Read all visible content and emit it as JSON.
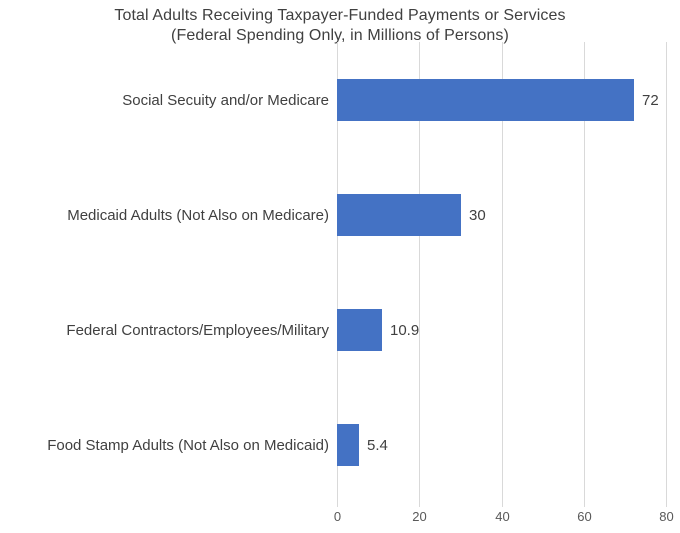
{
  "chart_data": {
    "type": "bar",
    "orientation": "horizontal",
    "title": "Total Adults Receiving Taxpayer-Funded Payments or Services",
    "subtitle": "(Federal Spending Only, in Millions of Persons)",
    "categories": [
      "Social Secuity and/or Medicare",
      "Medicaid Adults (Not Also on Medicare)",
      "Federal Contractors/Employees/Military",
      "Food Stamp Adults (Not Also on Medicaid)"
    ],
    "values": [
      72,
      30,
      10.9,
      5.4
    ],
    "value_labels": [
      "72",
      "30",
      "10.9",
      "5.4"
    ],
    "x_ticks": [
      "0",
      "20",
      "40",
      "60",
      "80"
    ],
    "xlim": [
      0,
      80
    ],
    "xlabel": "",
    "ylabel": "",
    "grid": "vertical gridlines visible, no axis line",
    "legend": "none",
    "data_labels_position": "outside end of bar",
    "colors": {
      "bar": "#4472c4",
      "gridline": "#d9d9d9",
      "title_text": "#404040",
      "category_text": "#404040",
      "value_text": "#404040",
      "tick_text": "#595959",
      "background": "#ffffff"
    }
  }
}
